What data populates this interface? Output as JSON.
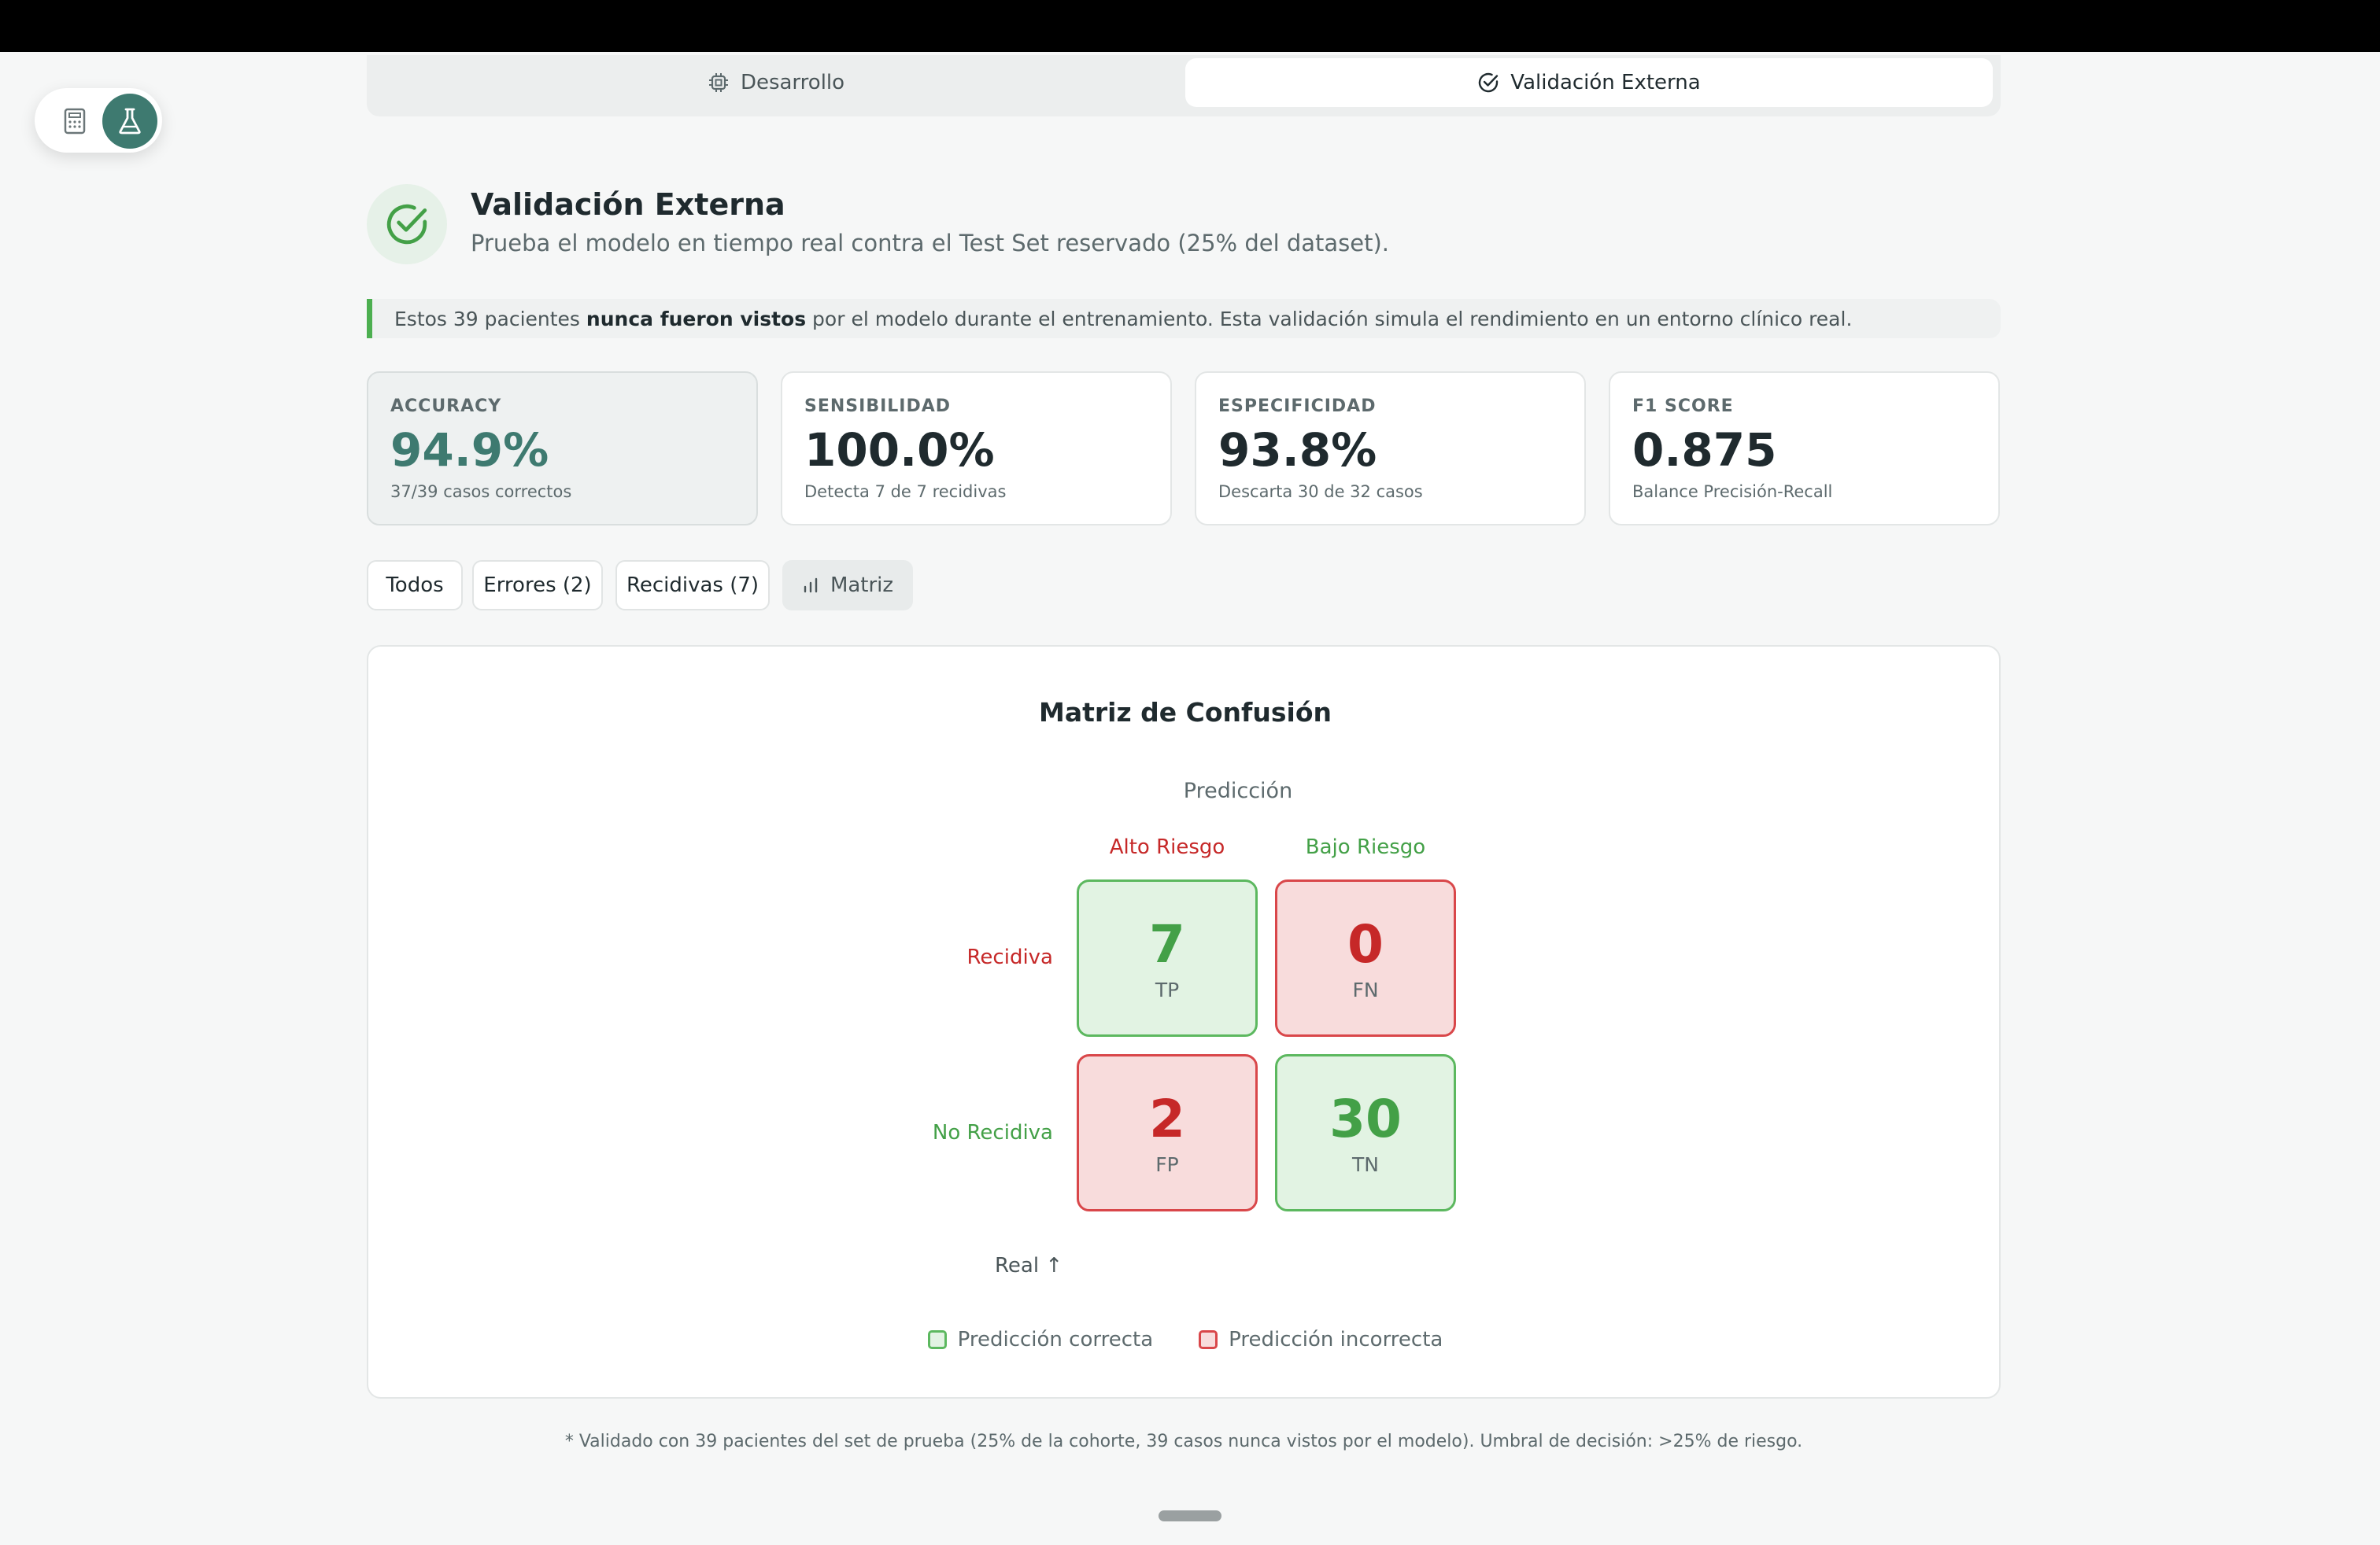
{
  "tabs": {
    "development": "Desarrollo",
    "external": "Validación Externa",
    "active": "external"
  },
  "floating": {
    "calculator_icon": "calculator-icon",
    "flask_icon": "flask-icon",
    "accent": "#3e7a70"
  },
  "header": {
    "title": "Validación Externa",
    "subtitle": "Prueba el modelo en tiempo real contra el Test Set reservado (25% del dataset)."
  },
  "banner": {
    "pre": "Estos 39 pacientes ",
    "bold": "nunca fueron vistos",
    "post": " por el modelo durante el entrenamiento. Esta validación simula el rendimiento en un entorno clínico real."
  },
  "metrics": [
    {
      "label": "ACCURACY",
      "value": "94.9%",
      "note": "37/39 casos correctos"
    },
    {
      "label": "SENSIBILIDAD",
      "value": "100.0%",
      "note": "Detecta 7 de 7 recidivas"
    },
    {
      "label": "ESPECIFICIDAD",
      "value": "93.8%",
      "note": "Descarta 30 de 32 casos"
    },
    {
      "label": "F1 SCORE",
      "value": "0.875",
      "note": "Balance Precisión-Recall"
    }
  ],
  "filters": {
    "all": "Todos",
    "errors": "Errores (2)",
    "recidivas": "Recidivas (7)",
    "matrix": "Matriz",
    "active": "matrix"
  },
  "matrix": {
    "title": "Matriz de Confusión",
    "prediction_label": "Predicción",
    "col_high": "Alto Riesgo",
    "col_low": "Bajo Riesgo",
    "row_recidiva": "Recidiva",
    "row_no_recidiva": "No Recidiva",
    "real_label": "Real ↑",
    "cells": {
      "tp": {
        "value": "7",
        "code": "TP"
      },
      "fn": {
        "value": "0",
        "code": "FN"
      },
      "fp": {
        "value": "2",
        "code": "FP"
      },
      "tn": {
        "value": "30",
        "code": "TN"
      }
    },
    "legend_correct": "Predicción correcta",
    "legend_incorrect": "Predicción incorrecta",
    "colors": {
      "correct": "#43a047",
      "incorrect": "#c62828"
    }
  },
  "footnote": "* Validado con 39 pacientes del set de prueba (25% de la cohorte, 39 casos nunca vistos por el modelo). Umbral de decisión: >25% de riesgo."
}
